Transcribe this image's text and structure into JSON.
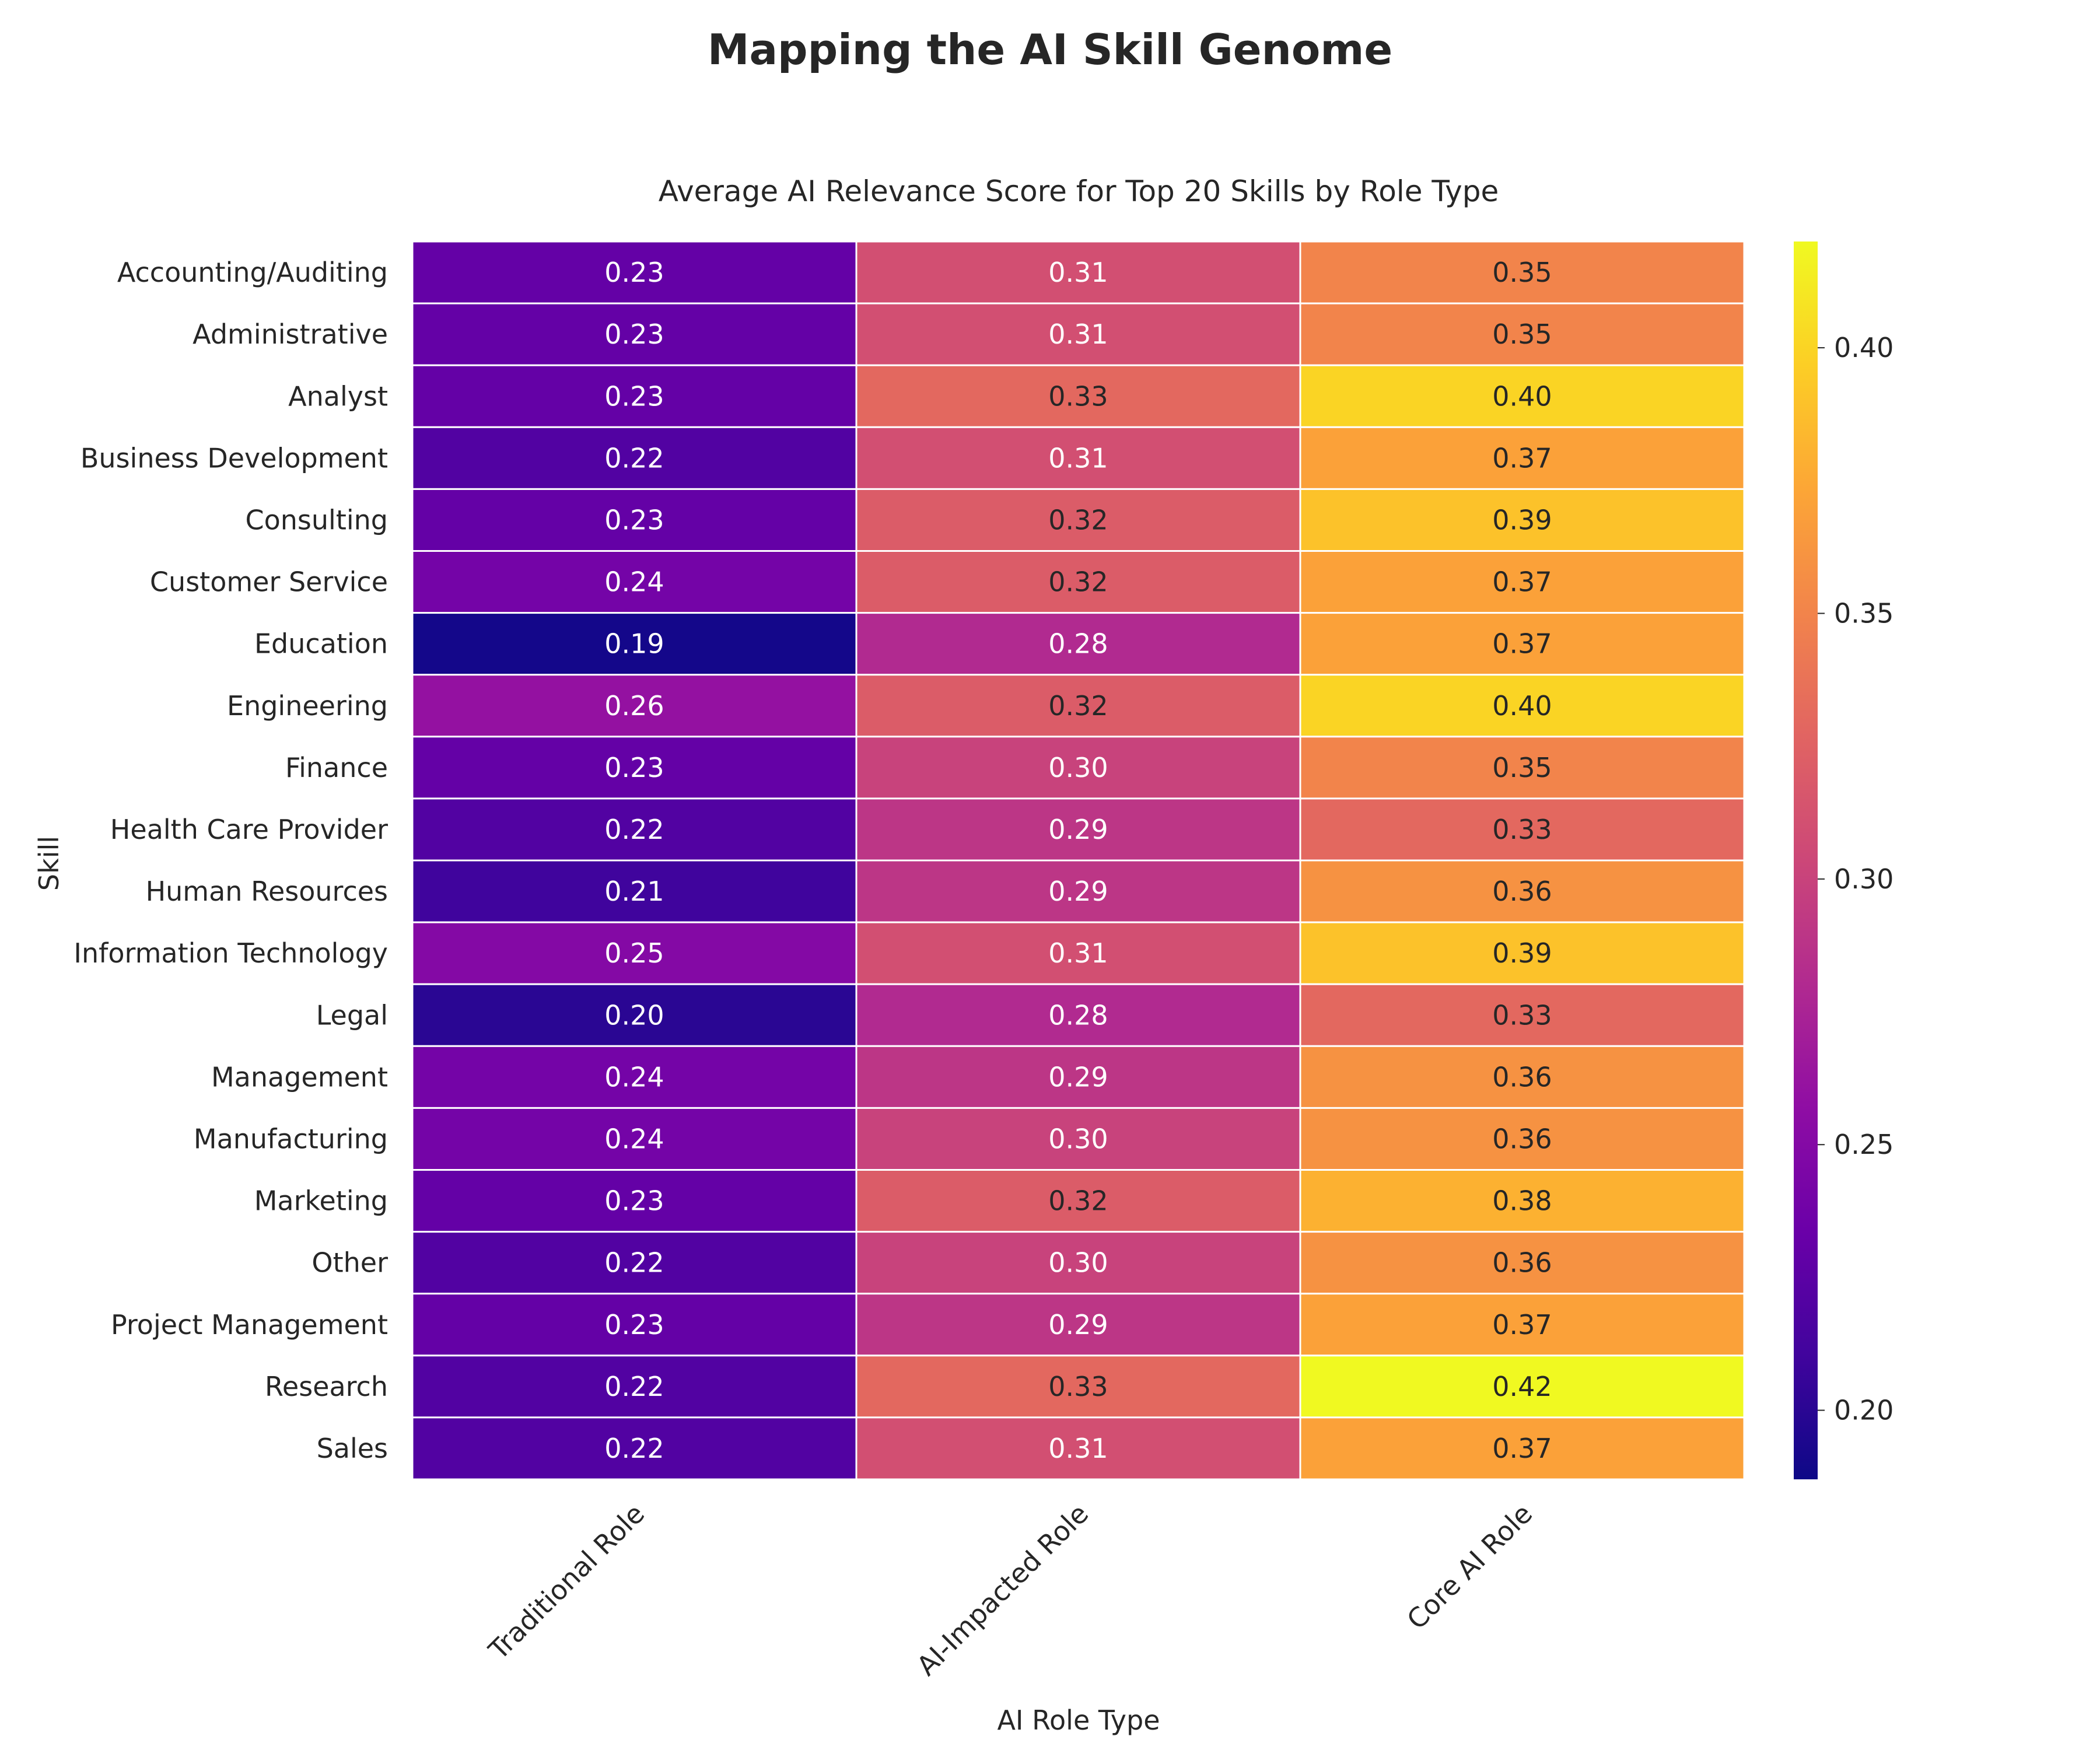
{
  "chart_data": {
    "type": "heatmap",
    "suptitle": "Mapping the AI Skill Genome",
    "title": "Average AI Relevance Score for Top 20 Skills by Role Type",
    "xlabel": "AI Role Type",
    "ylabel": "Skill",
    "columns": [
      "Traditional Role",
      "AI-Impacted Role",
      "Core AI Role"
    ],
    "rows": [
      "Accounting/Auditing",
      "Administrative",
      "Analyst",
      "Business Development",
      "Consulting",
      "Customer Service",
      "Education",
      "Engineering",
      "Finance",
      "Health Care Provider",
      "Human Resources",
      "Information Technology",
      "Legal",
      "Management",
      "Manufacturing",
      "Marketing",
      "Other",
      "Project Management",
      "Research",
      "Sales"
    ],
    "values": [
      [
        0.23,
        0.31,
        0.35
      ],
      [
        0.23,
        0.31,
        0.35
      ],
      [
        0.23,
        0.33,
        0.4
      ],
      [
        0.22,
        0.31,
        0.37
      ],
      [
        0.23,
        0.32,
        0.39
      ],
      [
        0.24,
        0.32,
        0.37
      ],
      [
        0.19,
        0.28,
        0.37
      ],
      [
        0.26,
        0.32,
        0.4
      ],
      [
        0.23,
        0.3,
        0.35
      ],
      [
        0.22,
        0.29,
        0.33
      ],
      [
        0.21,
        0.29,
        0.36
      ],
      [
        0.25,
        0.31,
        0.39
      ],
      [
        0.2,
        0.28,
        0.33
      ],
      [
        0.24,
        0.29,
        0.36
      ],
      [
        0.24,
        0.3,
        0.36
      ],
      [
        0.23,
        0.32,
        0.38
      ],
      [
        0.22,
        0.3,
        0.36
      ],
      [
        0.23,
        0.29,
        0.37
      ],
      [
        0.22,
        0.33,
        0.42
      ],
      [
        0.22,
        0.31,
        0.37
      ]
    ],
    "colormap": "plasma",
    "colorbar": {
      "range": [
        0.187,
        0.42
      ],
      "ticks": [
        "0.20",
        "0.25",
        "0.30",
        "0.35",
        "0.40"
      ]
    },
    "annotations": true,
    "grid": false
  }
}
